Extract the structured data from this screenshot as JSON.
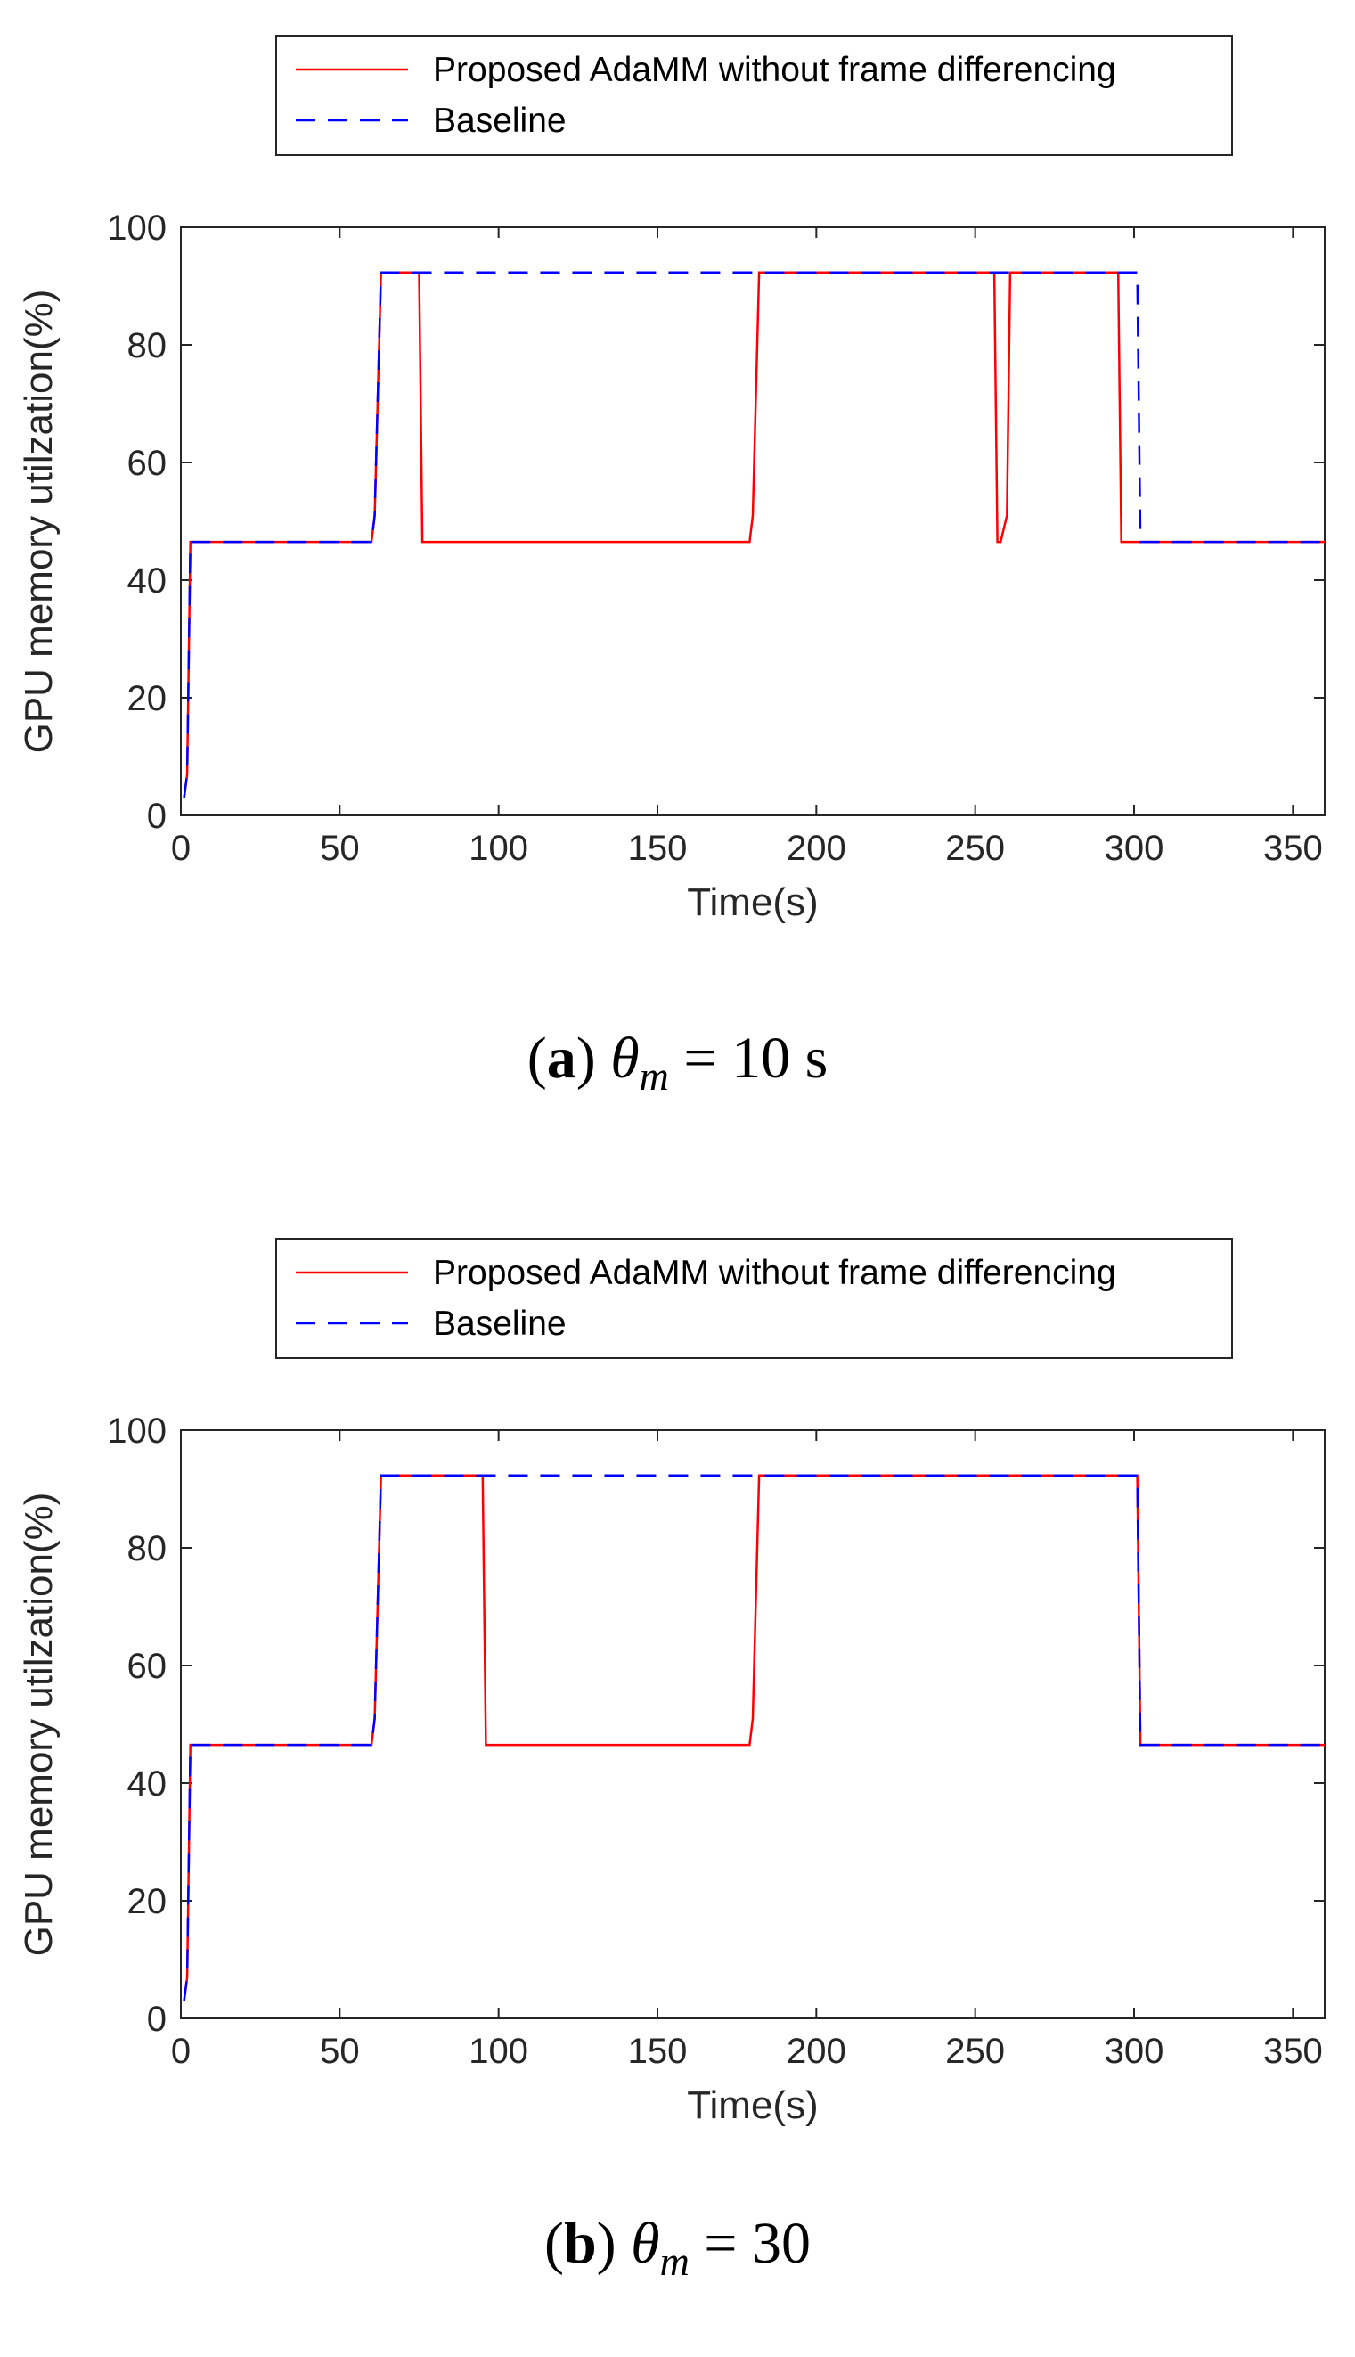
{
  "chart_data": [
    {
      "type": "line",
      "caption": {
        "paren_open": "(",
        "letter": "a",
        "paren_close": ")",
        "theta": "θ",
        "sub": "m",
        "equals": " = ",
        "value": "10 s"
      },
      "xlabel": "Time(s)",
      "ylabel": "GPU memory utilzation(%)",
      "xlim": [
        0,
        360
      ],
      "ylim": [
        0,
        100
      ],
      "xticks": [
        0,
        50,
        100,
        150,
        200,
        250,
        300,
        350
      ],
      "yticks": [
        0,
        20,
        40,
        60,
        80,
        100
      ],
      "legend_position": "top-center, outside above axes",
      "series": [
        {
          "name": "Proposed AdaMM without frame differencing",
          "color": "#ff0000",
          "style": "solid",
          "x": [
            1,
            2,
            3,
            60,
            61,
            63,
            75,
            76,
            179,
            180,
            182,
            256,
            257,
            258,
            260,
            261,
            262,
            295,
            296,
            297,
            360
          ],
          "y": [
            3,
            7,
            46.5,
            46.5,
            51,
            92.3,
            92.3,
            46.5,
            46.5,
            51,
            92.3,
            92.3,
            46.5,
            46.5,
            51,
            92.3,
            92.3,
            92.3,
            46.5,
            46.5,
            46.5
          ]
        },
        {
          "name": "Baseline",
          "color": "#0000ff",
          "style": "dashed",
          "x": [
            1,
            2,
            3,
            60,
            61,
            63,
            301,
            302,
            360
          ],
          "y": [
            3,
            7,
            46.5,
            46.5,
            51,
            92.3,
            92.3,
            46.5,
            46.5
          ]
        }
      ]
    },
    {
      "type": "line",
      "caption": {
        "paren_open": "(",
        "letter": "b",
        "paren_close": ")",
        "theta": "θ",
        "sub": "m",
        "equals": " = ",
        "value": "30"
      },
      "xlabel": "Time(s)",
      "ylabel": "GPU memory utilzation(%)",
      "xlim": [
        0,
        360
      ],
      "ylim": [
        0,
        100
      ],
      "xticks": [
        0,
        50,
        100,
        150,
        200,
        250,
        300,
        350
      ],
      "yticks": [
        0,
        20,
        40,
        60,
        80,
        100
      ],
      "legend_position": "top-center, outside above axes",
      "series": [
        {
          "name": "Proposed AdaMM without frame differencing",
          "color": "#ff0000",
          "style": "solid",
          "x": [
            1,
            2,
            3,
            60,
            61,
            63,
            95,
            96,
            179,
            180,
            182,
            301,
            302,
            360
          ],
          "y": [
            3,
            7,
            46.5,
            46.5,
            51,
            92.3,
            92.3,
            46.5,
            46.5,
            51,
            92.3,
            92.3,
            46.5,
            46.5
          ]
        },
        {
          "name": "Baseline",
          "color": "#0000ff",
          "style": "dashed",
          "x": [
            1,
            2,
            3,
            60,
            61,
            63,
            301,
            302,
            360
          ],
          "y": [
            3,
            7,
            46.5,
            46.5,
            51,
            92.3,
            92.3,
            46.5,
            46.5
          ]
        }
      ]
    }
  ]
}
